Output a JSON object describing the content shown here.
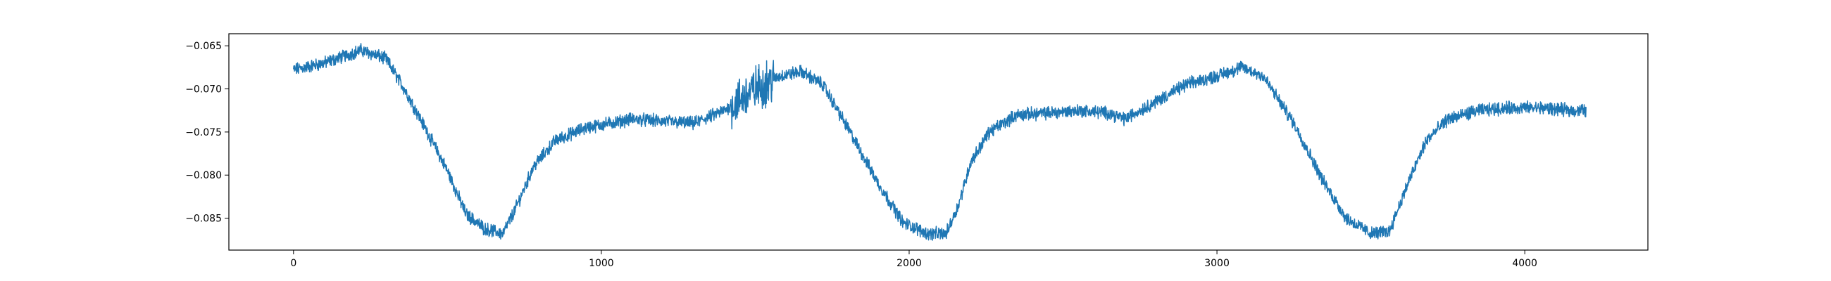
{
  "chart_data": {
    "type": "line",
    "title": "",
    "xlabel": "",
    "ylabel": "",
    "xlim": [
      -210,
      4400
    ],
    "ylim": [
      -0.0887,
      -0.0636
    ],
    "grid": false,
    "legend": "none",
    "xticks": [
      {
        "value": 0,
        "label": "0"
      },
      {
        "value": 1000,
        "label": "1000"
      },
      {
        "value": 2000,
        "label": "2000"
      },
      {
        "value": 3000,
        "label": "3000"
      },
      {
        "value": 4000,
        "label": "4000"
      }
    ],
    "yticks": [
      {
        "value": -0.065,
        "label": "−0.065"
      },
      {
        "value": -0.07,
        "label": "−0.070"
      },
      {
        "value": -0.075,
        "label": "−0.075"
      },
      {
        "value": -0.08,
        "label": "−0.080"
      },
      {
        "value": -0.085,
        "label": "−0.085"
      }
    ],
    "series": [
      {
        "color": "#1f77b4",
        "n_points": 4200,
        "noise_amplitude": 0.0006,
        "approx_x": [
          0,
          100,
          220,
          300,
          360,
          420,
          500,
          560,
          620,
          680,
          720,
          780,
          850,
          950,
          1100,
          1300,
          1400,
          1500,
          1580,
          1650,
          1720,
          1800,
          1900,
          1980,
          2060,
          2120,
          2160,
          2200,
          2260,
          2350,
          2450,
          2550,
          2650,
          2700,
          2800,
          2900,
          3000,
          3080,
          3150,
          3250,
          3350,
          3420,
          3500,
          3560,
          3620,
          3680,
          3750,
          3850,
          3950,
          4050,
          4150,
          4190
        ],
        "approx_y": [
          -0.0678,
          -0.067,
          -0.0655,
          -0.0665,
          -0.07,
          -0.074,
          -0.0795,
          -0.0845,
          -0.0862,
          -0.0868,
          -0.084,
          -0.079,
          -0.076,
          -0.0745,
          -0.0735,
          -0.074,
          -0.0725,
          -0.07,
          -0.0685,
          -0.068,
          -0.0695,
          -0.0745,
          -0.081,
          -0.0855,
          -0.0868,
          -0.0868,
          -0.0835,
          -0.0785,
          -0.075,
          -0.073,
          -0.0728,
          -0.0725,
          -0.0728,
          -0.0735,
          -0.0715,
          -0.0695,
          -0.0685,
          -0.0675,
          -0.0685,
          -0.074,
          -0.081,
          -0.085,
          -0.0868,
          -0.0865,
          -0.081,
          -0.076,
          -0.0735,
          -0.0725,
          -0.0722,
          -0.0722,
          -0.0725,
          -0.0725
        ]
      }
    ]
  }
}
